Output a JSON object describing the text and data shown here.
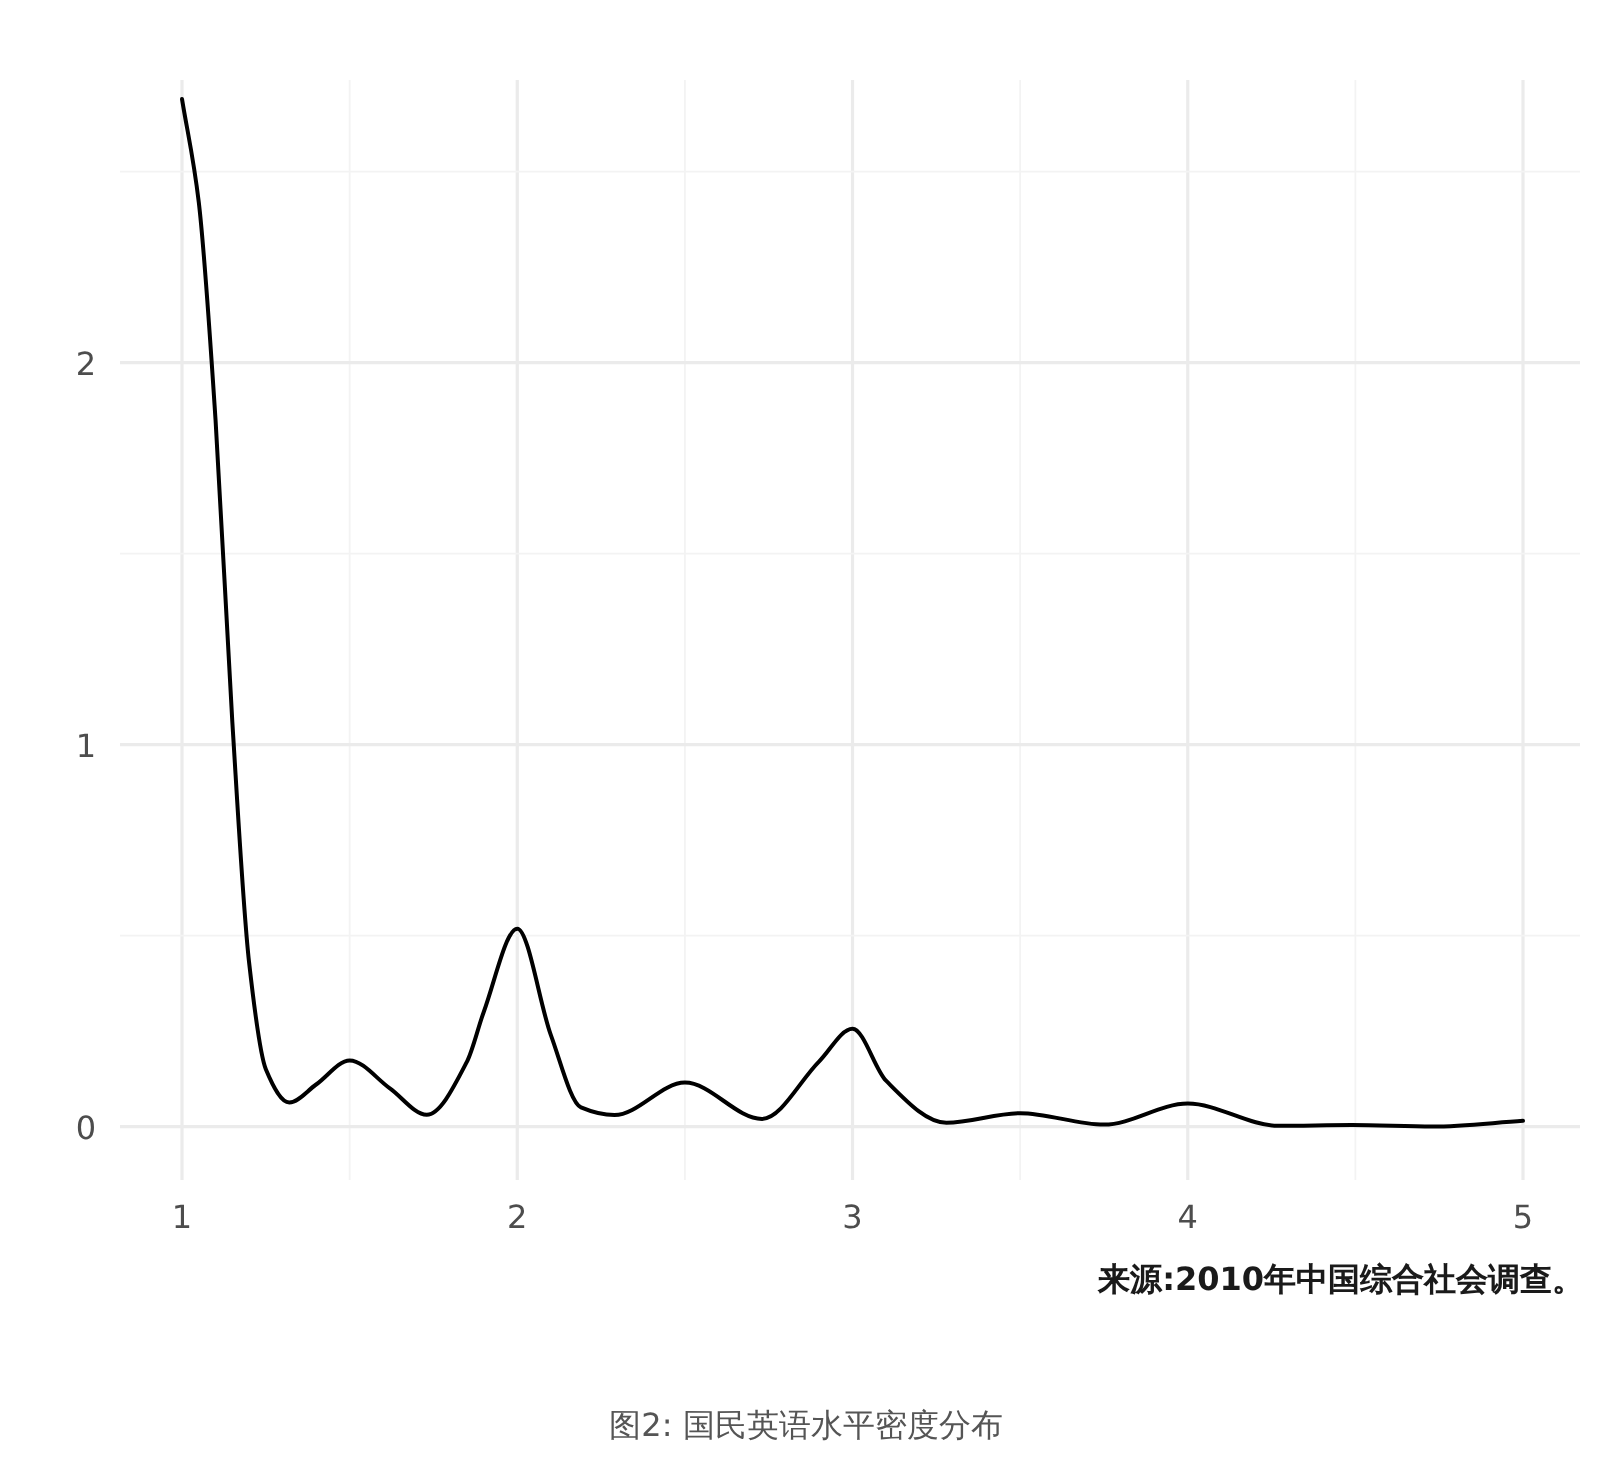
{
  "chart_data": {
    "type": "line",
    "x": [
      1.0,
      1.05,
      1.1,
      1.15,
      1.2,
      1.25,
      1.32,
      1.4,
      1.5,
      1.62,
      1.73,
      1.85,
      1.9,
      2.0,
      2.1,
      2.19,
      2.29,
      2.5,
      2.73,
      2.9,
      3.0,
      3.1,
      3.28,
      3.5,
      3.75,
      4.0,
      4.27,
      4.49,
      4.73,
      5.0
    ],
    "series": [
      {
        "color": "#000000",
        "values": [
          2.69,
          2.42,
          1.85,
          1.06,
          0.43,
          0.15,
          0.063,
          0.11,
          0.173,
          0.1,
          0.031,
          0.17,
          0.3,
          0.518,
          0.24,
          0.05,
          0.03,
          0.115,
          0.02,
          0.17,
          0.256,
          0.12,
          0.01,
          0.035,
          0.005,
          0.06,
          0.002,
          0.004,
          0.0,
          0.015
        ]
      }
    ],
    "xlim": [
      0.815,
      5.17
    ],
    "ylim": [
      -0.14,
      2.74
    ],
    "xticks": [
      1,
      {
        "value": 1.5,
        "label": null
      },
      2,
      {
        "value": 2.5,
        "label": null
      },
      3,
      {
        "value": 3.5,
        "label": null
      },
      4,
      {
        "value": 4.5,
        "label": null
      },
      5
    ],
    "yticks": [
      0,
      {
        "value": 0.5,
        "label": null
      },
      1,
      {
        "value": 1.5,
        "label": null
      },
      2,
      {
        "value": 2.5,
        "label": null
      }
    ],
    "grid": true,
    "marker": "none",
    "line_style": "solid",
    "annotations": [
      "来源:2010年中国综合社会调查。",
      "图2: 国民英语水平密度分布"
    ]
  }
}
